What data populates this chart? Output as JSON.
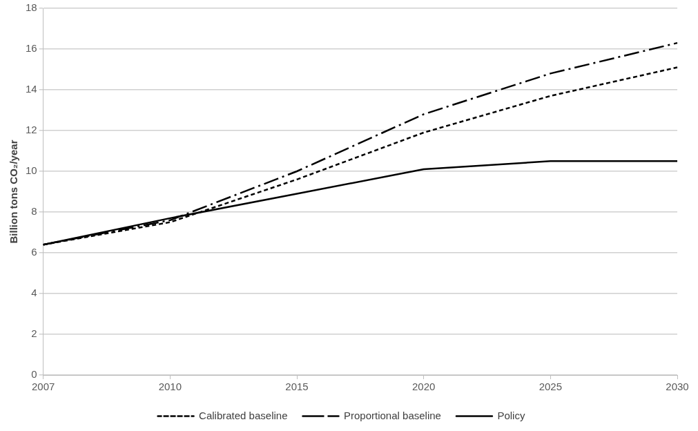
{
  "chart_data": {
    "type": "line",
    "ylabel": "Billion tons CO₂/year",
    "categories": [
      "2007",
      "2010",
      "2015",
      "2020",
      "2025",
      "2030"
    ],
    "series": [
      {
        "name": "Calibrated baseline",
        "color": "#000000",
        "line_style": "dashed",
        "values": [
          6.4,
          7.5,
          9.6,
          11.9,
          13.7,
          15.1
        ]
      },
      {
        "name": "Proportional baseline",
        "color": "#000000",
        "line_style": "dashdot",
        "values": [
          6.4,
          7.6,
          10.0,
          12.8,
          14.8,
          16.3
        ]
      },
      {
        "name": "Policy",
        "color": "#000000",
        "line_style": "solid",
        "values": [
          6.4,
          7.7,
          8.9,
          10.1,
          10.5,
          10.5
        ]
      }
    ],
    "ylim": [
      0,
      18
    ],
    "yticks": [
      0,
      2,
      4,
      6,
      8,
      10,
      12,
      14,
      16,
      18
    ],
    "grid": "y",
    "legend": "bottom",
    "marker": "none"
  }
}
